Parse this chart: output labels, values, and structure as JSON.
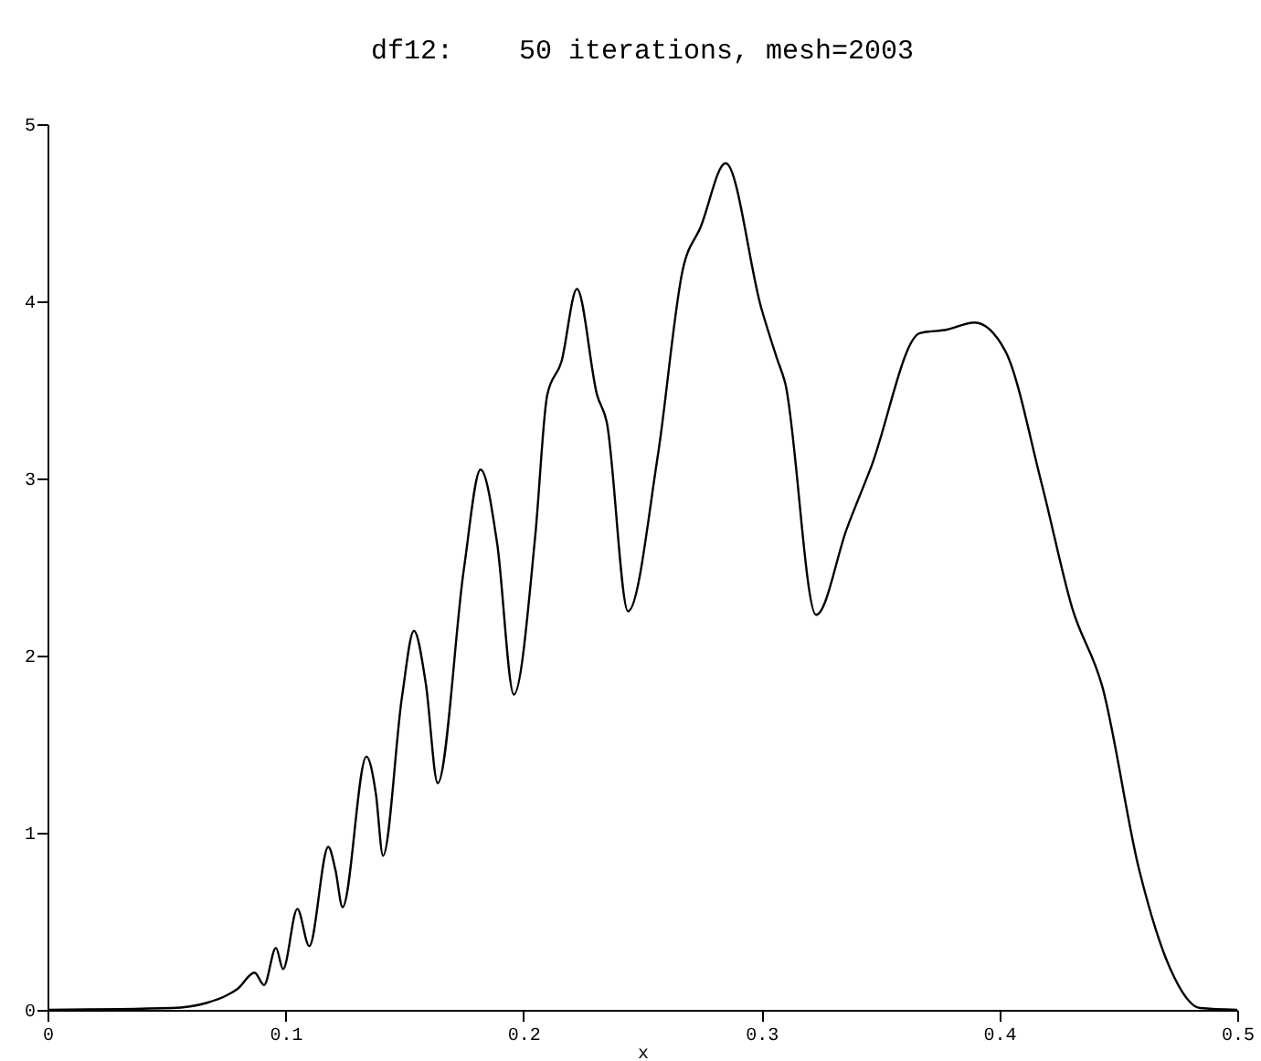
{
  "chart_data": {
    "type": "line",
    "title": "df12:    50 iterations, mesh=2003",
    "xlabel": "x",
    "x": [
      0,
      0.052,
      0.067,
      0.075,
      0.08,
      0.087,
      0.091,
      0.096,
      0.099,
      0.105,
      0.11,
      0.118,
      0.121,
      0.124,
      0.134,
      0.138,
      0.141,
      0.149,
      0.154,
      0.159,
      0.164,
      0.175,
      0.182,
      0.189,
      0.196,
      0.205,
      0.21,
      0.216,
      0.2225,
      0.231,
      0.235,
      0.244,
      0.2565,
      0.267,
      0.2745,
      0.285,
      0.3,
      0.3065,
      0.31,
      0.323,
      0.336,
      0.346,
      0.3666,
      0.378,
      0.3896,
      0.4025,
      0.418,
      0.4306,
      0.4434,
      0.4588,
      0.4716,
      0.4844,
      0.5
    ],
    "series": [
      {
        "color": "#000000",
        "values": [
          0,
          0.01,
          0.04,
          0.08,
          0.12,
          0.21,
          0.14,
          0.35,
          0.23,
          0.57,
          0.36,
          0.92,
          0.79,
          0.58,
          1.43,
          1.22,
          0.87,
          1.77,
          2.14,
          1.84,
          1.28,
          2.49,
          3.05,
          2.63,
          1.78,
          2.68,
          3.47,
          3.66,
          4.07,
          3.47,
          3.32,
          2.25,
          3.13,
          4.18,
          4.42,
          4.78,
          3.96,
          3.68,
          3.54,
          2.23,
          2.72,
          3.06,
          3.82,
          3.84,
          3.88,
          3.72,
          2.96,
          2.27,
          1.82,
          0.79,
          0.24,
          0.01,
          0
        ]
      }
    ],
    "xlim": [
      0,
      0.5
    ],
    "xticks": [
      0,
      0.1,
      0.2,
      0.3,
      0.4,
      0.5
    ],
    "ylim": [
      0,
      5
    ],
    "yticks": [
      0,
      1,
      2,
      3,
      4,
      5
    ],
    "grid": false,
    "line_style": "solid",
    "marker": "none"
  }
}
